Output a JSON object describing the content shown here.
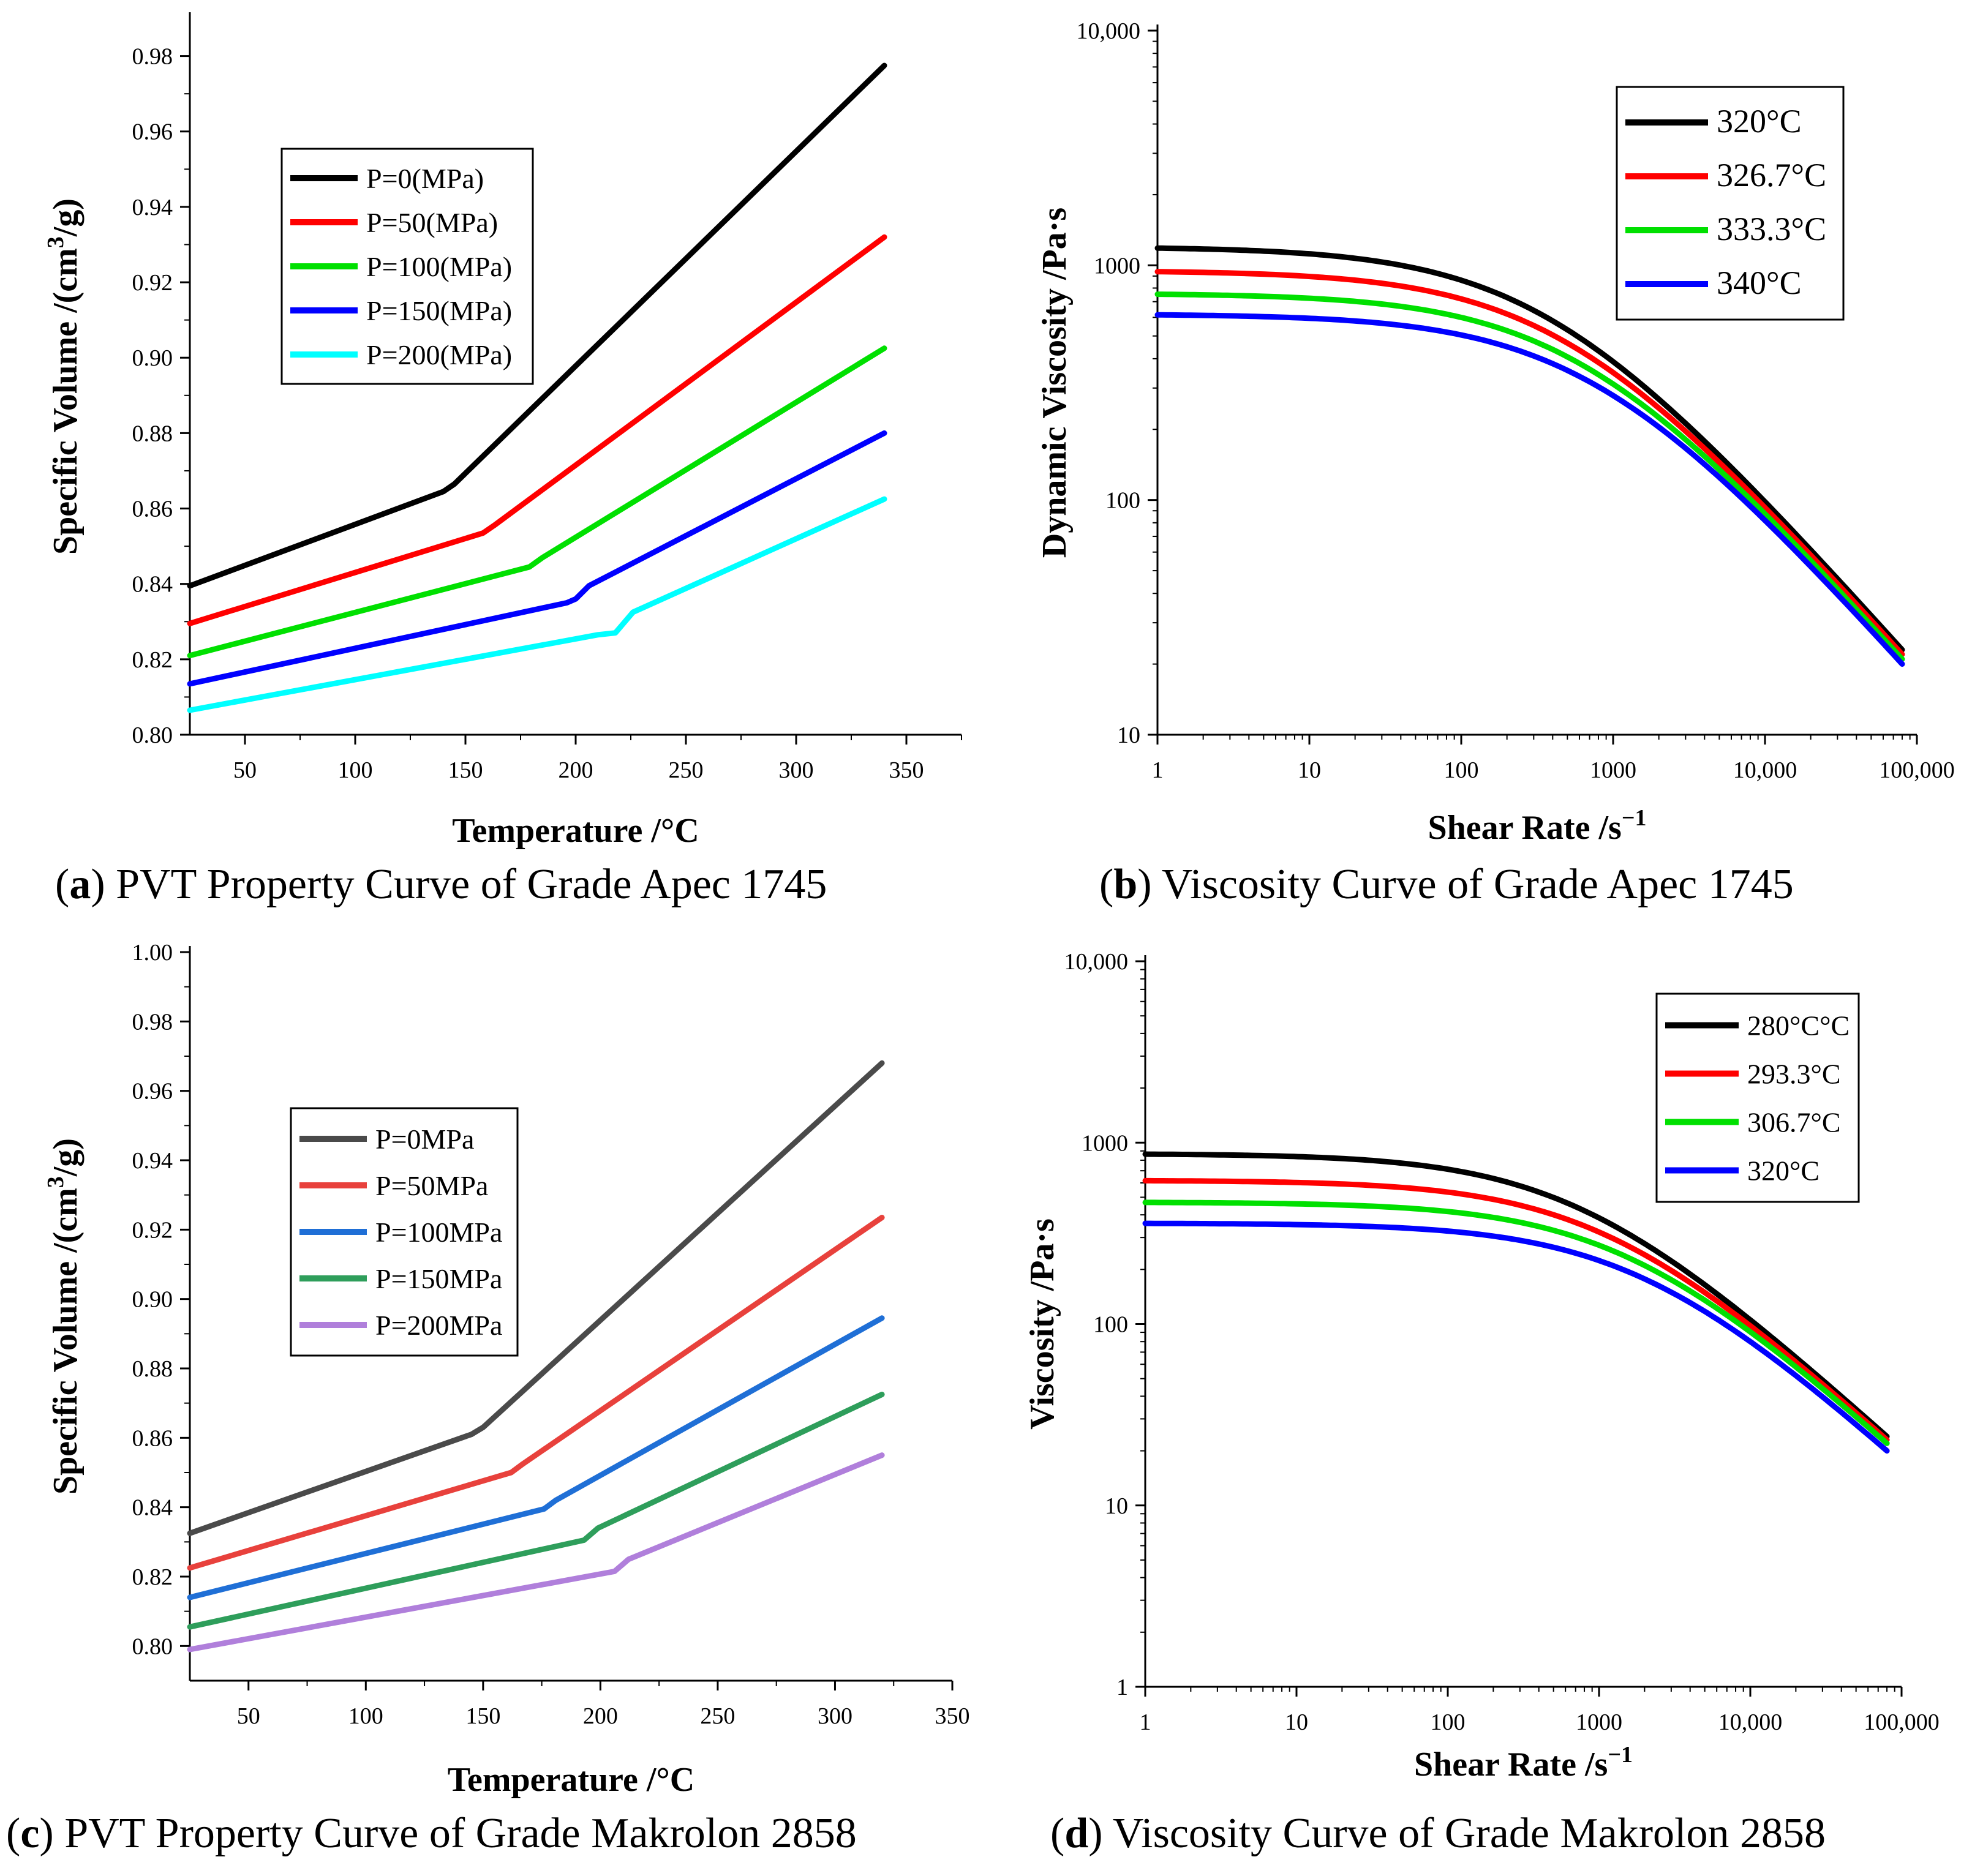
{
  "chart_data": [
    {
      "id": "a",
      "type": "line",
      "caption_letter": "a",
      "caption": "PVT Property Curve of Grade Apec 1745",
      "xlabel": "Temperature /°C",
      "ylabel_main": "Specific Volume /(cm",
      "ylabel_sup": "3",
      "ylabel_tail": "/g)",
      "xlim": [
        25,
        375
      ],
      "ylim": [
        0.8,
        0.99
      ],
      "xticks": [
        50,
        100,
        150,
        200,
        250,
        300,
        350
      ],
      "xtick_labels": [
        "50",
        "100",
        "150",
        "200",
        "250",
        "300",
        "350"
      ],
      "yticks": [
        0.8,
        0.82,
        0.84,
        0.86,
        0.88,
        0.9,
        0.92,
        0.94,
        0.96,
        0.98
      ],
      "ytick_labels": [
        "0.80",
        "0.82",
        "0.84",
        "0.86",
        "0.88",
        "0.90",
        "0.92",
        "0.94",
        "0.96",
        "0.98"
      ],
      "legend_position": "upper-left",
      "series": [
        {
          "name": "P=0(MPa)",
          "color": "#000000",
          "x": [
            25,
            140,
            145,
            340
          ],
          "y": [
            0.8395,
            0.8645,
            0.8665,
            0.9775
          ]
        },
        {
          "name": "P=50(MPa)",
          "color": "#ff0000",
          "x": [
            25,
            158,
            163,
            340
          ],
          "y": [
            0.8295,
            0.8535,
            0.8555,
            0.932
          ]
        },
        {
          "name": "P=100(MPa)",
          "color": "#00e000",
          "x": [
            25,
            179,
            185,
            340
          ],
          "y": [
            0.821,
            0.8445,
            0.847,
            0.9025
          ]
        },
        {
          "name": "P=150(MPa)",
          "color": "#0000ff",
          "x": [
            25,
            196,
            200,
            206,
            340
          ],
          "y": [
            0.8135,
            0.835,
            0.836,
            0.8395,
            0.88
          ]
        },
        {
          "name": "P=200(MPa)",
          "color": "#00ffff",
          "x": [
            25,
            210,
            218,
            226,
            340
          ],
          "y": [
            0.8065,
            0.8265,
            0.827,
            0.8325,
            0.8625
          ]
        }
      ]
    },
    {
      "id": "b",
      "type": "line",
      "caption_letter": "b",
      "caption": "Viscosity Curve of Grade Apec 1745",
      "xlabel": "Shear Rate /s",
      "xlabel_sup": "−1",
      "ylabel_main": "Dynamic Viscosity /Pa·s",
      "xscale": "log",
      "yscale": "log",
      "xlim": [
        1,
        100000
      ],
      "ylim": [
        10,
        10000
      ],
      "xticks": [
        1,
        10,
        100,
        1000,
        10000,
        100000
      ],
      "xtick_labels": [
        "1",
        "10",
        "100",
        "1000",
        "10,000",
        "100,000"
      ],
      "yticks": [
        10,
        100,
        1000,
        10000
      ],
      "ytick_labels": [
        "10",
        "100",
        "1000",
        "10,000"
      ],
      "legend_position": "top-right",
      "series": [
        {
          "name": "320°C",
          "color": "#000000",
          "eta0": 1200,
          "tau": 0.0015,
          "n": 0.27,
          "end": 23
        },
        {
          "name": "326.7°C",
          "color": "#ff0000",
          "eta0": 950,
          "tau": 0.00175,
          "n": 0.27,
          "end": 22
        },
        {
          "name": "333.3°C",
          "color": "#00e000",
          "eta0": 760,
          "tau": 0.00205,
          "n": 0.27,
          "end": 21
        },
        {
          "name": "340°C",
          "color": "#0000ff",
          "eta0": 620,
          "tau": 0.0024,
          "n": 0.27,
          "end": 20
        }
      ]
    },
    {
      "id": "c",
      "type": "line",
      "caption_letter": "c",
      "caption": "PVT Property Curve of Grade Makrolon 2858",
      "xlabel": "Temperature /°C",
      "ylabel_main": "Specific Volume /(cm",
      "ylabel_sup": "3",
      "ylabel_tail": "/g)",
      "xlim": [
        25,
        350
      ],
      "ylim": [
        0.79,
        1.0
      ],
      "xticks": [
        50,
        100,
        150,
        200,
        250,
        300,
        350
      ],
      "xtick_labels": [
        "50",
        "100",
        "150",
        "200",
        "250",
        "300",
        "350"
      ],
      "yticks": [
        0.8,
        0.82,
        0.84,
        0.86,
        0.88,
        0.9,
        0.92,
        0.94,
        0.96,
        0.98,
        1.0
      ],
      "ytick_labels": [
        "0.80",
        "0.82",
        "0.84",
        "0.86",
        "0.88",
        "0.90",
        "0.92",
        "0.94",
        "0.96",
        "0.98",
        "1.00"
      ],
      "legend_position": "center-left",
      "series": [
        {
          "name": "P=0MPa",
          "color": "#4a4a4a",
          "x": [
            25,
            145,
            150,
            320
          ],
          "y": [
            0.8325,
            0.861,
            0.863,
            0.968
          ]
        },
        {
          "name": "P=50MPa",
          "color": "#e8413c",
          "x": [
            25,
            162,
            167,
            320
          ],
          "y": [
            0.8225,
            0.85,
            0.8525,
            0.9235
          ]
        },
        {
          "name": "P=100MPa",
          "color": "#1f6fd6",
          "x": [
            25,
            176,
            181,
            320
          ],
          "y": [
            0.814,
            0.8395,
            0.842,
            0.8945
          ]
        },
        {
          "name": "P=150MPa",
          "color": "#2e9e5b",
          "x": [
            25,
            193,
            199,
            320
          ],
          "y": [
            0.8055,
            0.8305,
            0.834,
            0.8725
          ]
        },
        {
          "name": "P=200MPa",
          "color": "#b07fdb",
          "x": [
            25,
            206,
            212,
            320
          ],
          "y": [
            0.799,
            0.8215,
            0.825,
            0.855
          ]
        }
      ]
    },
    {
      "id": "d",
      "type": "line",
      "caption_letter": "d",
      "caption": "Viscosity Curve of Grade Makrolon 2858",
      "xlabel": "Shear Rate /s",
      "xlabel_sup": "−1",
      "ylabel_main": "Viscosity /Pa·s",
      "xscale": "log",
      "yscale": "log",
      "xlim": [
        1,
        100000
      ],
      "ylim": [
        1,
        10000
      ],
      "xticks": [
        1,
        10,
        100,
        1000,
        10000,
        100000
      ],
      "xtick_labels": [
        "1",
        "10",
        "100",
        "1000",
        "10,000",
        "100,000"
      ],
      "yticks": [
        1,
        10,
        100,
        1000,
        10000
      ],
      "ytick_labels": [
        "1",
        "10",
        "100",
        "1000",
        "10,000"
      ],
      "legend_position": "top-right",
      "series": [
        {
          "name": "280°C°C",
          "color": "#000000",
          "eta0": 870,
          "tau": 0.0017,
          "n": 0.24,
          "end": 24
        },
        {
          "name": "293.3°C",
          "color": "#ff0000",
          "eta0": 620,
          "tau": 0.0022,
          "n": 0.24,
          "end": 23
        },
        {
          "name": "306.7°C",
          "color": "#00e000",
          "eta0": 470,
          "tau": 0.0027,
          "n": 0.24,
          "end": 22
        },
        {
          "name": "320°C",
          "color": "#0000ff",
          "eta0": 360,
          "tau": 0.0033,
          "n": 0.24,
          "end": 20
        }
      ]
    }
  ]
}
